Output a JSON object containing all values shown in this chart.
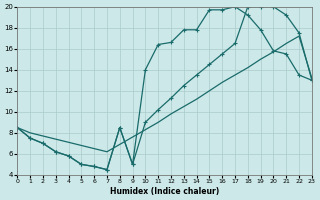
{
  "xlabel": "Humidex (Indice chaleur)",
  "bg_color": "#cce8e8",
  "grid_color": "#aacccc",
  "line_color": "#1a6b6b",
  "xlim": [
    0,
    23
  ],
  "ylim": [
    4,
    20
  ],
  "xticks": [
    0,
    1,
    2,
    3,
    4,
    5,
    6,
    7,
    8,
    9,
    10,
    11,
    12,
    13,
    14,
    15,
    16,
    17,
    18,
    19,
    20,
    21,
    22,
    23
  ],
  "yticks": [
    4,
    6,
    8,
    10,
    12,
    14,
    16,
    18,
    20
  ],
  "line1_x": [
    0,
    1,
    2,
    3,
    4,
    5,
    6,
    7,
    8,
    9,
    10,
    11,
    12,
    13,
    14,
    15,
    16,
    17,
    18,
    19,
    20,
    21,
    22,
    23
  ],
  "line1_y": [
    8.5,
    7.5,
    7.0,
    6.2,
    5.8,
    5.0,
    4.8,
    4.5,
    8.5,
    5.0,
    14.0,
    16.4,
    16.6,
    17.8,
    17.8,
    19.7,
    19.7,
    20.0,
    19.2,
    17.8,
    15.8,
    15.5,
    13.5,
    13.0
  ],
  "line2_x": [
    0,
    1,
    2,
    3,
    4,
    5,
    6,
    7,
    8,
    9,
    10,
    11,
    12,
    13,
    14,
    15,
    16,
    17,
    18,
    19,
    20,
    21,
    22,
    23
  ],
  "line2_y": [
    8.5,
    8.0,
    7.7,
    7.4,
    7.1,
    6.8,
    6.5,
    6.2,
    6.9,
    7.6,
    8.3,
    9.0,
    9.8,
    10.5,
    11.2,
    12.0,
    12.8,
    13.5,
    14.2,
    15.0,
    15.7,
    16.5,
    17.2,
    13.2
  ],
  "line3_x": [
    0,
    1,
    2,
    3,
    4,
    5,
    6,
    7,
    8,
    9,
    10,
    11,
    12,
    13,
    14,
    15,
    16,
    17,
    18,
    19,
    20,
    21,
    22,
    23
  ],
  "line3_y": [
    8.5,
    7.5,
    7.0,
    6.2,
    5.8,
    5.0,
    4.8,
    4.5,
    8.5,
    5.0,
    9.0,
    10.2,
    11.3,
    12.5,
    13.5,
    14.5,
    15.5,
    16.5,
    20.0,
    20.0,
    20.0,
    19.2,
    17.5,
    13.0
  ]
}
